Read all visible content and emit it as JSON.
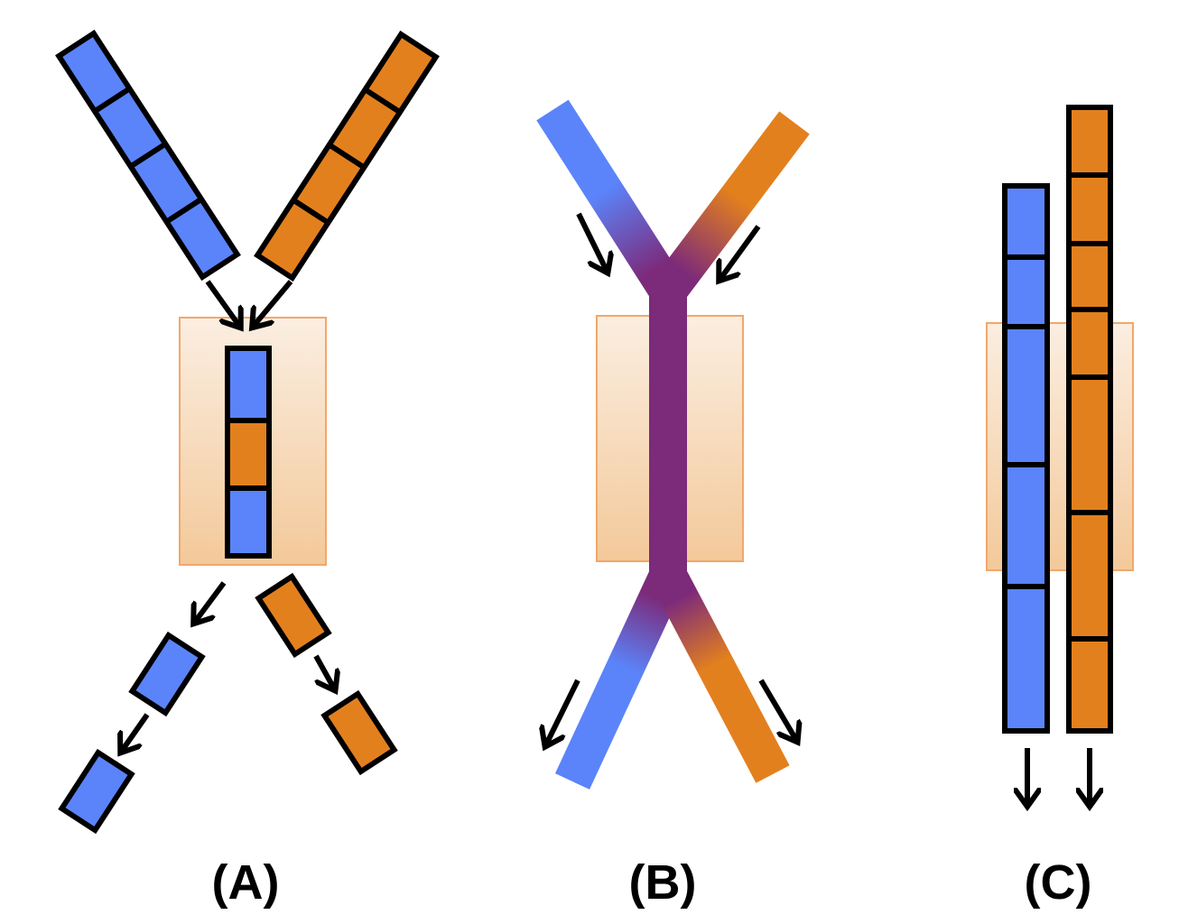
{
  "colors": {
    "blue": "#5b84fa",
    "orange": "#e3801e",
    "purple": "#7c2a7a",
    "box_top": "#fbeee1",
    "box_bottom": "#f3c99a",
    "box_border": "#f2a769",
    "outline": "#000000"
  },
  "panels": [
    {
      "id": "A",
      "label": "(A)"
    },
    {
      "id": "B",
      "label": "(B)"
    },
    {
      "id": "C",
      "label": "(C)"
    }
  ]
}
